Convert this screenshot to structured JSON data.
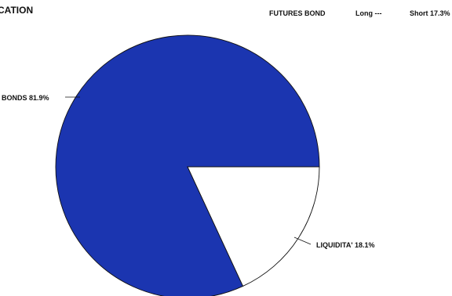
{
  "chart_data": {
    "type": "pie",
    "title": "CATION",
    "header": {
      "futures_label": "FUTURES BOND",
      "long_label": "Long ---",
      "short_label": "Short 17.3%"
    },
    "slices": [
      {
        "label": "BONDS 81.9%",
        "name": "BONDS",
        "value": 81.9,
        "color": "#1b35b0"
      },
      {
        "label": "LIQUIDITA' 18.1%",
        "name": "LIQUIDITA'",
        "value": 18.1,
        "color": "#ffffff"
      }
    ],
    "start_angle_deg": 0,
    "direction": "counterclockwise",
    "legend": "none"
  }
}
